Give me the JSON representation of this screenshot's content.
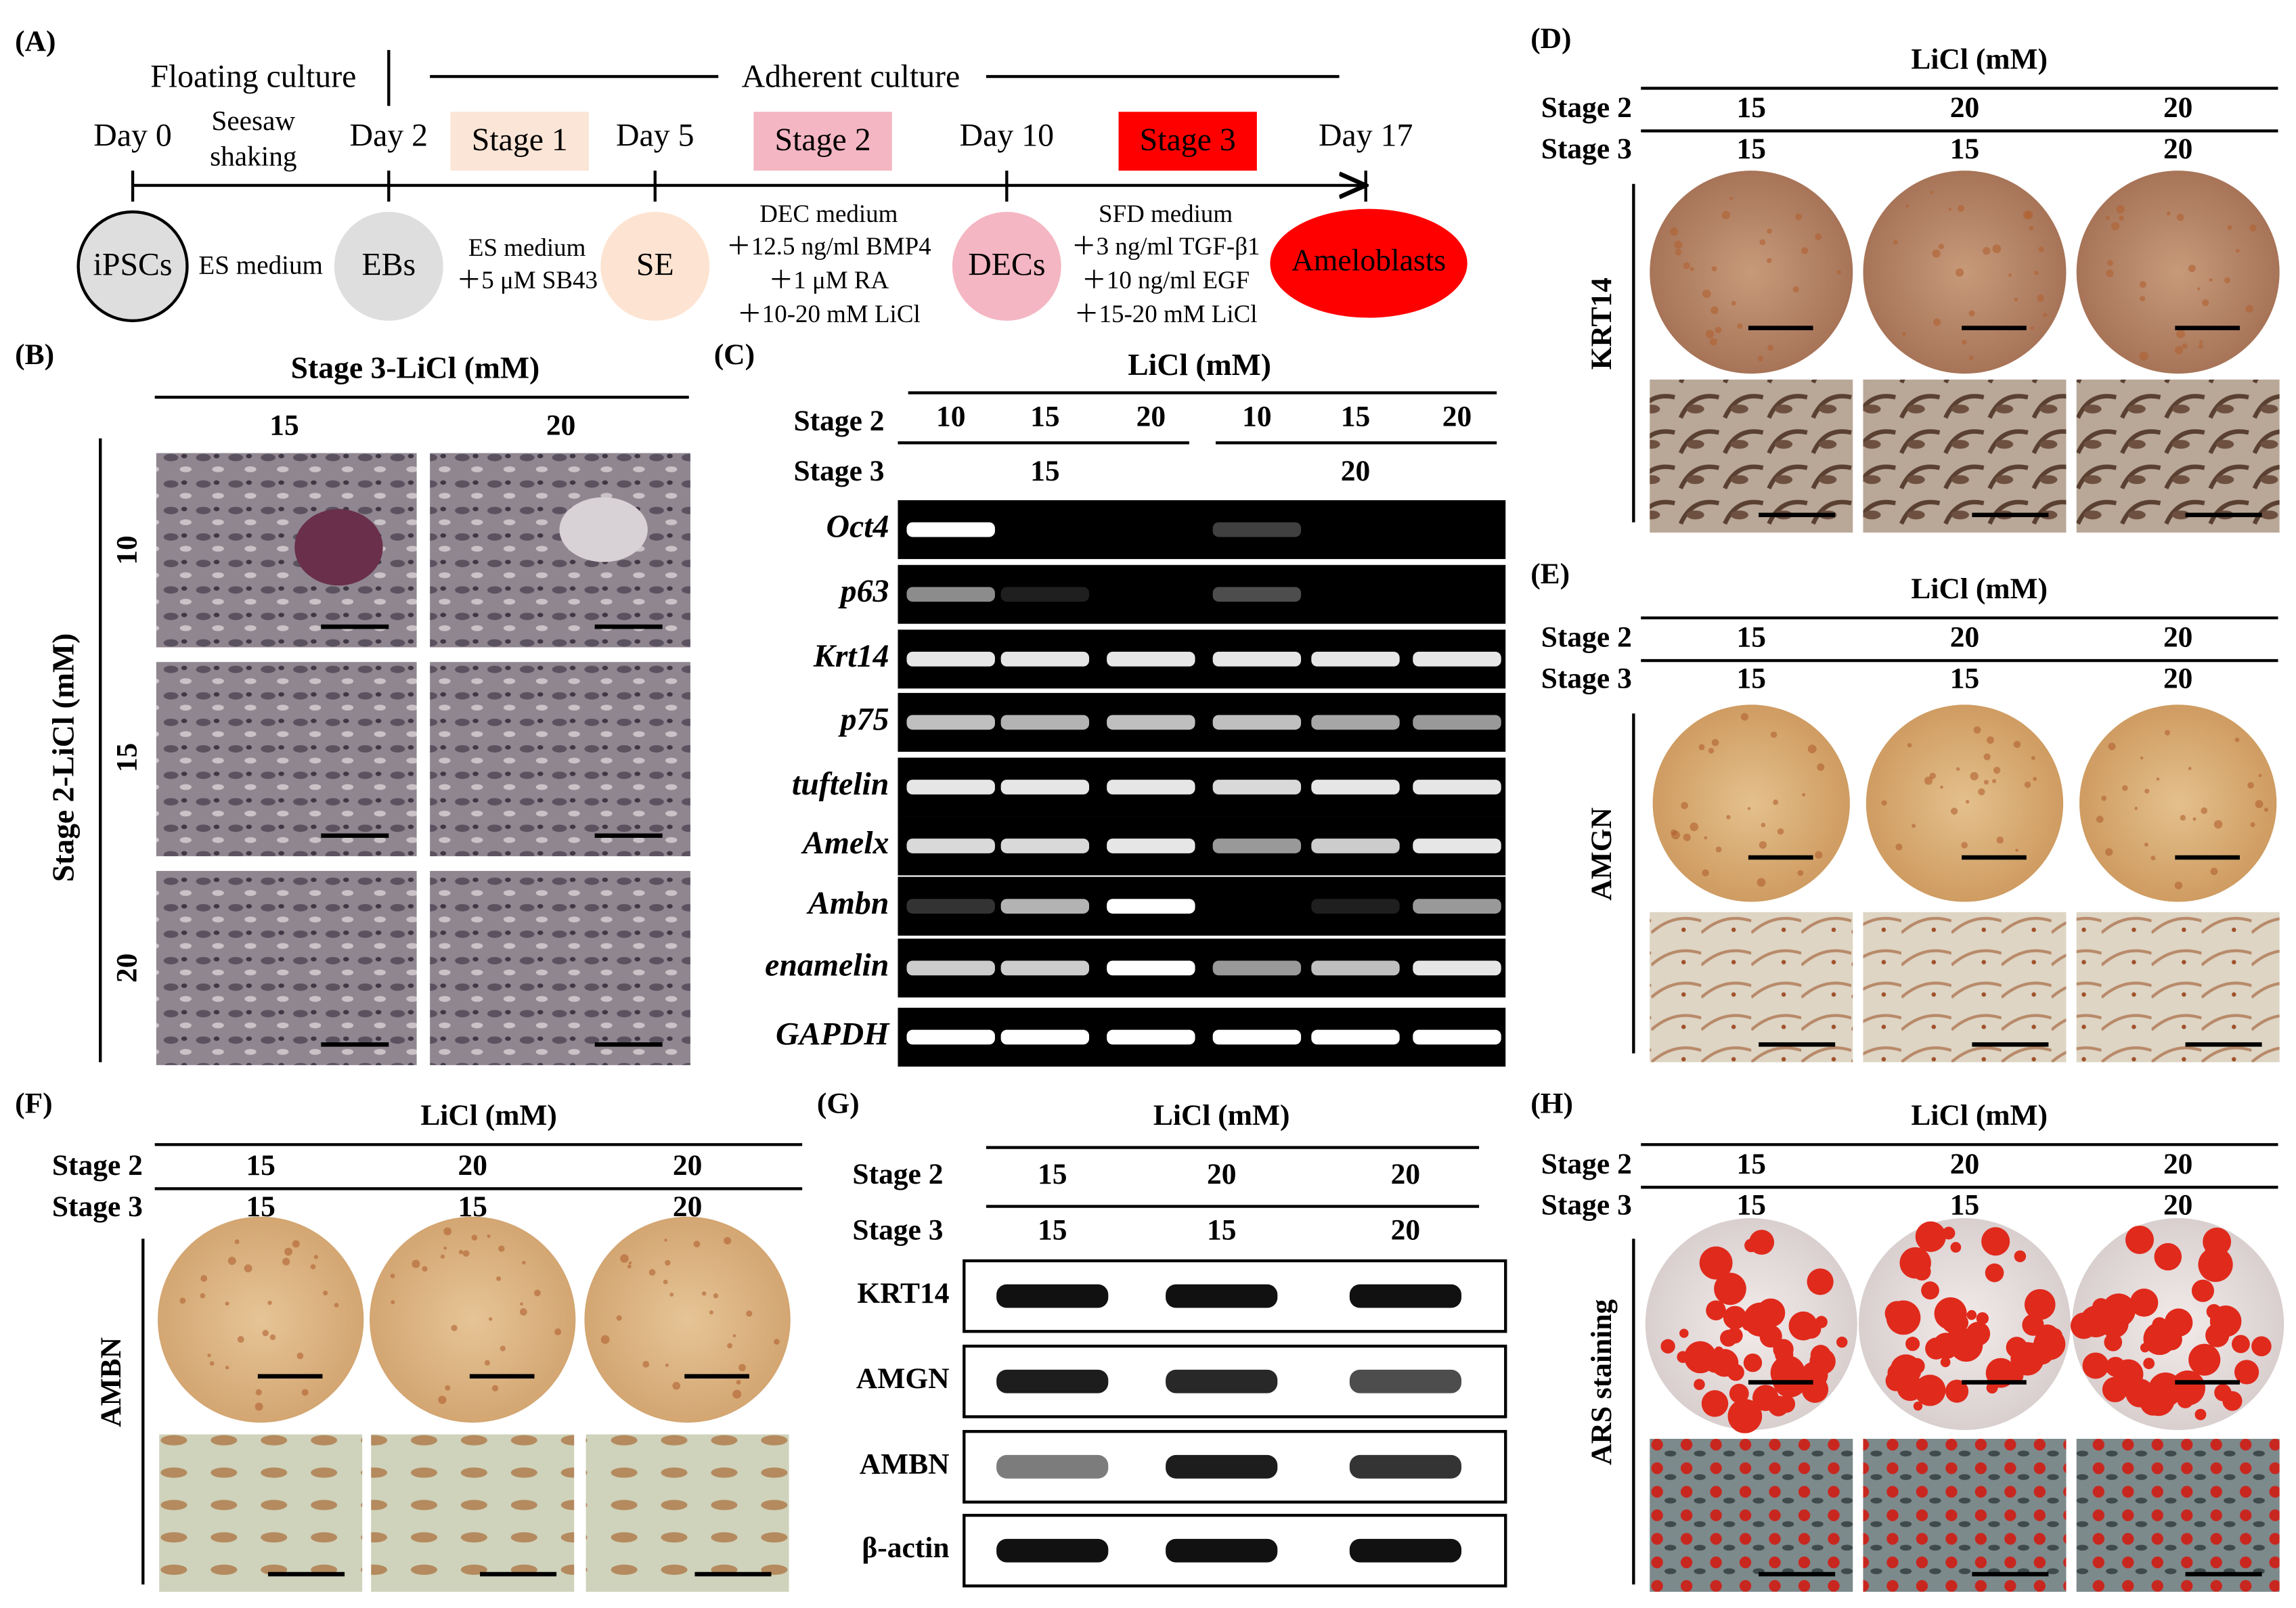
{
  "panels": {
    "A": {
      "label": "(A)",
      "floating": "Floating culture",
      "adherent": "Adherent culture",
      "days": [
        "Day 0",
        "Day 2",
        "Day 5",
        "Day 10",
        "Day 17"
      ],
      "stages": [
        "Stage 1",
        "Stage 2",
        "Stage 3"
      ],
      "shaking": [
        "Seesaw",
        "shaking"
      ],
      "cells": [
        "iPSCs",
        "EBs",
        "SE",
        "DECs",
        "Ameloblasts"
      ],
      "media": [
        [
          "ES medium"
        ],
        [
          "ES medium",
          "＋5 μM SB43"
        ],
        [
          "DEC medium",
          "＋12.5 ng/ml BMP4",
          "＋1 μM RA",
          "＋10-20 mM LiCl"
        ],
        [
          "SFD medium",
          "＋3 ng/ml TGF-β1",
          "＋10 ng/ml EGF",
          "＋15-20 mM LiCl"
        ]
      ]
    },
    "B": {
      "label": "(B)",
      "col_title": "Stage 3-LiCl (mM)",
      "cols": [
        "15",
        "20"
      ],
      "row_title": "Stage 2-LiCl (mM)",
      "rows": [
        "10",
        "15",
        "20"
      ]
    },
    "C": {
      "label": "(C)",
      "title": "LiCl (mM)",
      "stage2_label": "Stage 2",
      "stage2": [
        "10",
        "15",
        "20",
        "10",
        "15",
        "20"
      ],
      "stage3_label": "Stage 3",
      "stage3": [
        "15",
        "20"
      ],
      "genes": [
        "Oct4",
        "p63",
        "Krt14",
        "p75",
        "tuftelin",
        "Amelx",
        "Ambn",
        "enamelin",
        "GAPDH"
      ]
    },
    "D": {
      "label": "(D)",
      "title": "LiCl (mM)",
      "stage2_label": "Stage 2",
      "stage2": [
        "15",
        "20",
        "20"
      ],
      "stage3_label": "Stage 3",
      "stage3": [
        "15",
        "15",
        "20"
      ],
      "stain": "KRT14"
    },
    "E": {
      "label": "(E)",
      "title": "LiCl (mM)",
      "stage2_label": "Stage 2",
      "stage2": [
        "15",
        "20",
        "20"
      ],
      "stage3_label": "Stage 3",
      "stage3": [
        "15",
        "15",
        "20"
      ],
      "stain": "AMGN"
    },
    "F": {
      "label": "(F)",
      "title": "LiCl (mM)",
      "stage2_label": "Stage 2",
      "stage2": [
        "15",
        "20",
        "20"
      ],
      "stage3_label": "Stage 3",
      "stage3": [
        "15",
        "15",
        "20"
      ],
      "stain": "AMBN"
    },
    "G": {
      "label": "(G)",
      "title": "LiCl (mM)",
      "stage2_label": "Stage 2",
      "stage2": [
        "15",
        "20",
        "20"
      ],
      "stage3_label": "Stage 3",
      "stage3": [
        "15",
        "15",
        "20"
      ],
      "proteins": [
        "KRT14",
        "AMGN",
        "AMBN",
        "β-actin"
      ]
    },
    "H": {
      "label": "(H)",
      "title": "LiCl (mM)",
      "stage2_label": "Stage 2",
      "stage2": [
        "15",
        "20",
        "20"
      ],
      "stage3_label": "Stage 3",
      "stage3": [
        "15",
        "15",
        "20"
      ],
      "stain": "ARS staining"
    }
  }
}
